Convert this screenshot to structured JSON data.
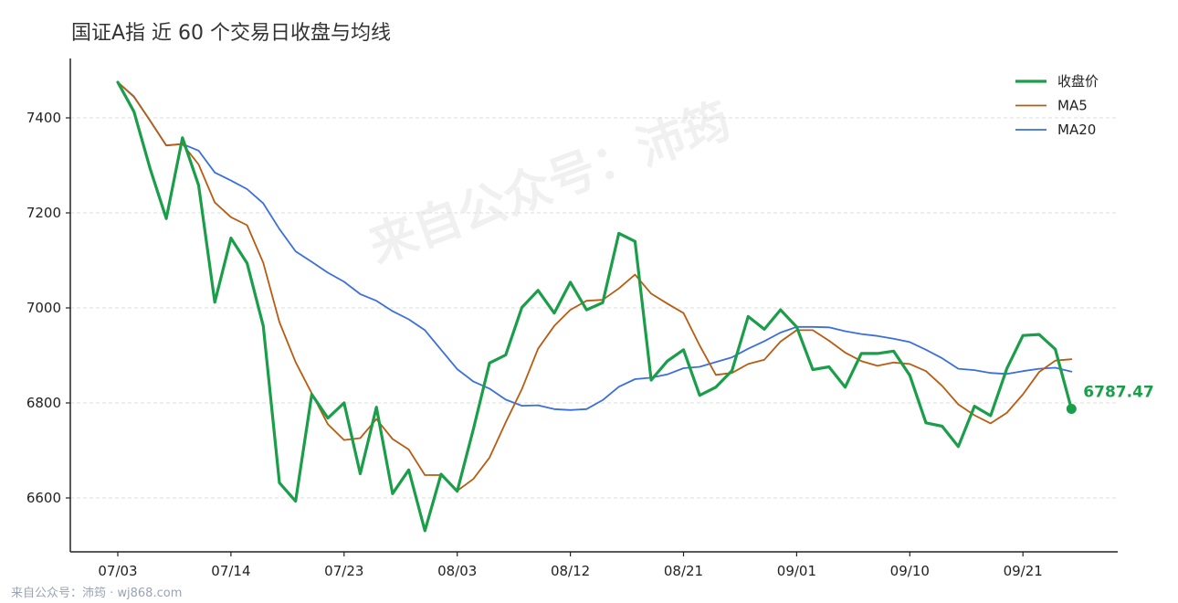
{
  "title": "国证A指 近 60 个交易日收盘与均线",
  "footer": "来自公众号：沛筠 · wj868.com",
  "watermark": "来自公众号：沛筠",
  "colors": {
    "close": "#1a9e4a",
    "ma5": "#b85c12",
    "ma20": "#3a6fdc",
    "axis": "#222222",
    "grid": "#dddddd"
  },
  "chart_data": {
    "type": "line",
    "title": "国证A指 近 60 个交易日收盘与均线",
    "xlabel": "",
    "ylabel": "",
    "ylim": [
      6500,
      7530
    ],
    "yticks": [
      6600,
      6800,
      7000,
      7200,
      7400
    ],
    "ytick_labels": [
      "6600",
      "6800",
      "7000",
      "7200",
      "7400"
    ],
    "xtick_indices": [
      0,
      7,
      14,
      21,
      28,
      35,
      42,
      49,
      56
    ],
    "xtick_labels": [
      "07/03",
      "07/14",
      "07/23",
      "08/03",
      "08/12",
      "08/21",
      "09/01",
      "09/10",
      "09/21"
    ],
    "grid": "horizontal dashed",
    "legend_position": "top-right",
    "last_value_label": "6787.47",
    "series": [
      {
        "name": "收盘价",
        "key": "close",
        "values": [
          7475,
          7413,
          7293,
          7188,
          7358,
          7258,
          7012,
          7147,
          7094,
          6962,
          6632,
          6593,
          6818,
          6768,
          6800,
          6651,
          6791,
          6609,
          6659,
          6531,
          6650,
          6614,
          6745,
          6884,
          6901,
          7001,
          7037,
          6989,
          7054,
          6996,
          7011,
          7157,
          7140,
          6848,
          6888,
          6912,
          6816,
          6833,
          6868,
          6982,
          6955,
          6996,
          6960,
          6870,
          6876,
          6833,
          6904,
          6904,
          6909,
          6858,
          6758,
          6751,
          6708,
          6793,
          6773,
          6872,
          6942,
          6944,
          6913,
          6787.47
        ]
      },
      {
        "name": "MA5",
        "key": "ma5",
        "values": [
          7475,
          7444,
          7394,
          7342,
          7345,
          7302,
          7222,
          7191,
          7174,
          7095,
          6970,
          6886,
          6820,
          6755,
          6722,
          6726,
          6766,
          6724,
          6702,
          6648,
          6648,
          6615,
          6640,
          6685,
          6759,
          6829,
          6914,
          6962,
          6996,
          7015,
          7017,
          7041,
          7070,
          7030,
          7009,
          6989,
          6921,
          6859,
          6863,
          6882,
          6891,
          6929,
          6953,
          6953,
          6931,
          6906,
          6888,
          6878,
          6885,
          6882,
          6867,
          6836,
          6797,
          6774,
          6757,
          6779,
          6818,
          6865,
          6889,
          6892
        ]
      },
      {
        "name": "MA20",
        "key": "ma20",
        "values": [
          7475,
          7445,
          7394,
          7342,
          7345,
          7331,
          7285,
          7268,
          7250,
          7220,
          7166,
          7119,
          7097,
          7074,
          7055,
          7029,
          7015,
          6993,
          6976,
          6953,
          6912,
          6871,
          6845,
          6830,
          6807,
          6794,
          6795,
          6787,
          6785,
          6787,
          6806,
          6834,
          6850,
          6853,
          6860,
          6873,
          6876,
          6886,
          6896,
          6914,
          6930,
          6948,
          6960,
          6960,
          6959,
          6951,
          6945,
          6941,
          6935,
          6928,
          6912,
          6894,
          6872,
          6869,
          6863,
          6861,
          6867,
          6872,
          6874,
          6866
        ]
      }
    ]
  }
}
